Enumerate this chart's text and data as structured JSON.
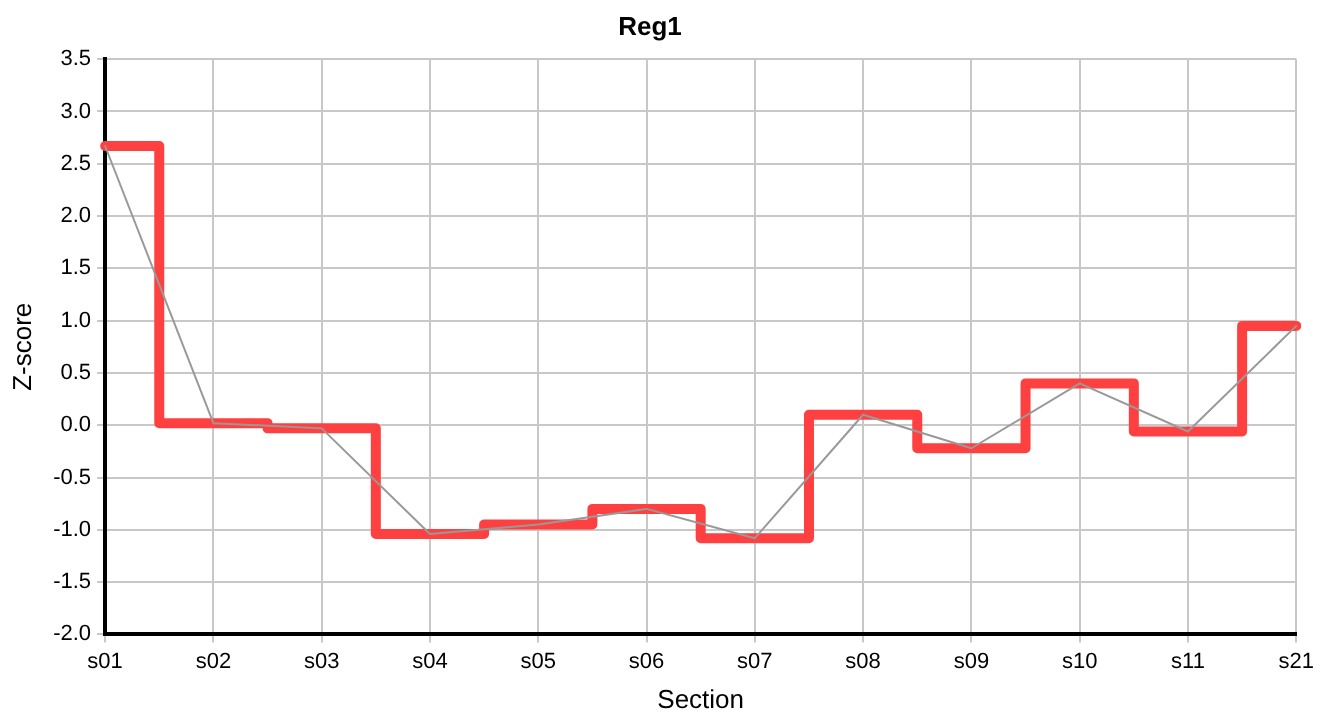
{
  "chart_data": {
    "type": "line",
    "title": "Reg1",
    "xlabel": "Section",
    "ylabel": "Z-score",
    "categories": [
      "s01",
      "s02",
      "s03",
      "s04",
      "s05",
      "s06",
      "s07",
      "s08",
      "s09",
      "s10",
      "s11",
      "s21"
    ],
    "series": [
      {
        "type": "line",
        "color": "#999999",
        "values": [
          2.67,
          0.02,
          -0.03,
          -1.04,
          -0.95,
          -0.8,
          -1.08,
          0.1,
          -0.22,
          0.4,
          -0.06,
          0.95
        ]
      },
      {
        "type": "step",
        "color": "#ff4040",
        "values": [
          2.67,
          0.02,
          -0.03,
          -1.04,
          -0.95,
          -0.8,
          -1.08,
          0.1,
          -0.22,
          0.4,
          -0.06,
          0.95
        ]
      }
    ],
    "ylim": [
      -2,
      3.5
    ],
    "yticks": [
      {
        "value": -2,
        "label": "-2.0"
      },
      -1.5,
      {
        "value": -1,
        "label": "-1.0"
      },
      -0.5,
      {
        "value": 0,
        "label": "0.0"
      },
      0.5,
      {
        "value": 1,
        "label": "1.0"
      },
      1.5,
      {
        "value": 2,
        "label": "2.0"
      },
      2.5,
      {
        "value": 3,
        "label": "3.0"
      },
      3.5
    ],
    "grid": true,
    "legend": false,
    "marker": "none"
  }
}
